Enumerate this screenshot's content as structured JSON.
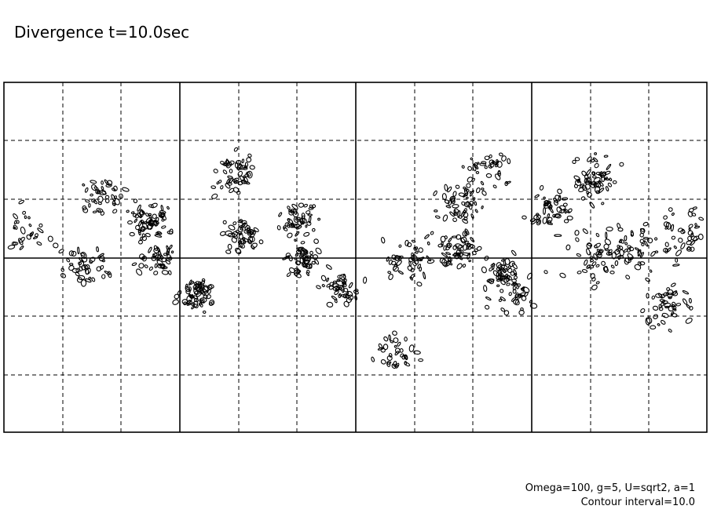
{
  "title": "Divergence t=10.0sec",
  "notes": [
    "Omega=100, g=5, U=sqrt2, a=1",
    "Contour interval=10.0"
  ]
}
